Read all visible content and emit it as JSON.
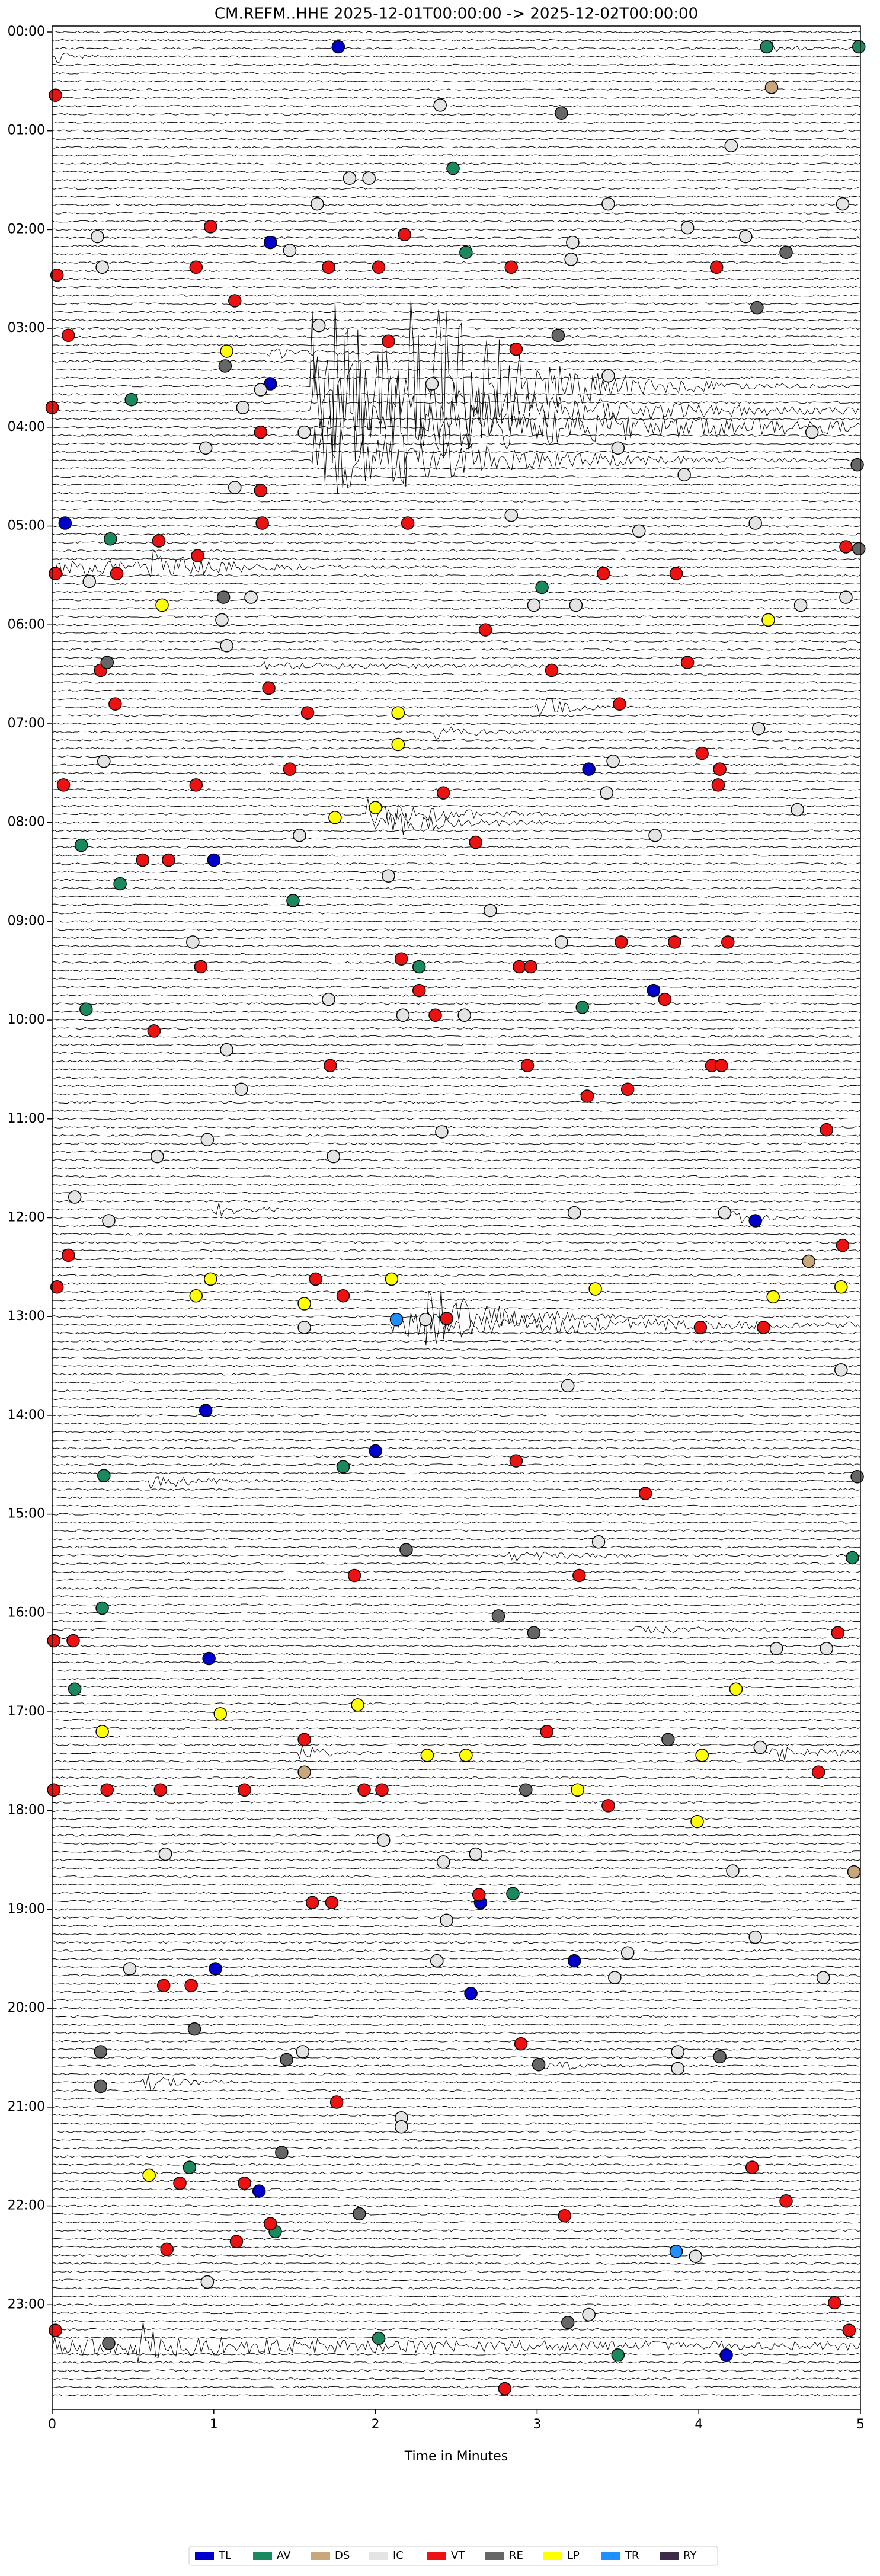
{
  "chart_data": {
    "type": "helicorder",
    "title": "CM.REFM..HHE  2025-12-01T00:00:00 -> 2025-12-02T00:00:00",
    "xlabel": "Time in Minutes",
    "xlim": [
      0,
      5
    ],
    "xticks": [
      0,
      1,
      2,
      3,
      4,
      5
    ],
    "ylim": [
      -0.06,
      24.06
    ],
    "y_inverted": true,
    "yticks": [
      {
        "value": 0,
        "label": "00:00"
      },
      {
        "value": 1,
        "label": "01:00"
      },
      {
        "value": 2,
        "label": "02:00"
      },
      {
        "value": 3,
        "label": "03:00"
      },
      {
        "value": 4,
        "label": "04:00"
      },
      {
        "value": 5,
        "label": "05:00"
      },
      {
        "value": 6,
        "label": "06:00"
      },
      {
        "value": 7,
        "label": "07:00"
      },
      {
        "value": 8,
        "label": "08:00"
      },
      {
        "value": 9,
        "label": "09:00"
      },
      {
        "value": 10,
        "label": "10:00"
      },
      {
        "value": 11,
        "label": "11:00"
      },
      {
        "value": 12,
        "label": "12:00"
      },
      {
        "value": 13,
        "label": "13:00"
      },
      {
        "value": 14,
        "label": "14:00"
      },
      {
        "value": 15,
        "label": "15:00"
      },
      {
        "value": 16,
        "label": "16:00"
      },
      {
        "value": 17,
        "label": "17:00"
      },
      {
        "value": 18,
        "label": "18:00"
      },
      {
        "value": 19,
        "label": "19:00"
      },
      {
        "value": 20,
        "label": "20:00"
      },
      {
        "value": 21,
        "label": "21:00"
      },
      {
        "value": 22,
        "label": "22:00"
      },
      {
        "value": 23,
        "label": "23:00"
      }
    ],
    "legend": "bottom",
    "series": [
      {
        "name": "TL",
        "color": "#0000cc",
        "x": [
          1.77,
          1.35,
          1.35,
          0.08,
          3.32,
          1.0,
          3.72,
          4.35,
          0.95,
          2.0,
          0.97,
          2.65,
          1.01,
          3.23,
          2.59,
          1.28,
          4.17
        ],
        "values": [
          0.15,
          2.13,
          3.56,
          4.97,
          7.46,
          8.38,
          9.7,
          12.03,
          13.95,
          14.36,
          16.46,
          18.93,
          19.6,
          19.52,
          19.85,
          21.85,
          23.51
        ]
      },
      {
        "name": "AV",
        "color": "#1a8a5e",
        "x": [
          4.42,
          4.99,
          2.48,
          2.56,
          0.49,
          0.36,
          3.03,
          0.18,
          0.42,
          1.49,
          2.27,
          0.21,
          3.28,
          1.8,
          0.32,
          4.95,
          0.31,
          0.14,
          1.38,
          2.02,
          2.85,
          3.5,
          0.85
        ],
        "values": [
          0.15,
          0.15,
          1.38,
          2.23,
          3.72,
          5.13,
          5.62,
          8.23,
          8.62,
          8.79,
          9.46,
          9.89,
          9.87,
          14.52,
          14.61,
          15.44,
          15.95,
          16.77,
          22.26,
          23.34,
          18.84,
          23.51,
          21.61
        ]
      },
      {
        "name": "DS",
        "color": "#c8a77a",
        "x": [
          4.45,
          4.68,
          4.96,
          1.56
        ],
        "values": [
          0.56,
          12.44,
          18.62,
          17.61
        ]
      },
      {
        "name": "IC",
        "color": "#e4e4e4",
        "x": [
          2.4,
          4.2,
          1.84,
          1.96,
          1.64,
          3.44,
          4.89,
          0.28,
          1.47,
          3.93,
          3.22,
          3.21,
          0.31,
          4.29,
          1.65,
          3.44,
          1.29,
          2.35,
          1.18,
          0.95,
          3.5,
          4.7,
          1.56,
          1.13,
          3.91,
          4.35,
          3.63,
          2.84,
          0.23,
          1.23,
          1.05,
          2.98,
          3.24,
          4.63,
          4.91,
          1.08,
          0.32,
          3.47,
          4.37,
          3.43,
          4.61,
          3.73,
          1.53,
          2.08,
          2.71,
          0.87,
          3.15,
          1.71,
          2.17,
          2.55,
          1.08,
          1.17,
          2.41,
          0.96,
          1.74,
          0.65,
          0.14,
          0.35,
          3.23,
          4.16,
          1.56,
          2.31,
          3.19,
          4.88,
          3.38,
          4.48,
          4.79,
          4.38,
          2.05,
          0.7,
          2.62,
          2.42,
          4.21,
          2.44,
          4.35,
          3.56,
          3.48,
          4.77,
          0.48,
          2.38,
          1.55,
          3.87,
          3.87,
          2.16,
          0.96,
          3.98,
          3.32,
          2.16
        ],
        "values": [
          0.74,
          1.15,
          1.48,
          1.48,
          1.74,
          1.74,
          1.74,
          2.07,
          2.21,
          1.98,
          2.13,
          2.3,
          2.38,
          2.07,
          2.97,
          3.48,
          3.62,
          3.56,
          3.8,
          4.21,
          4.21,
          4.05,
          4.05,
          4.61,
          4.48,
          4.97,
          5.05,
          4.89,
          5.56,
          5.72,
          5.95,
          5.8,
          5.8,
          5.8,
          5.72,
          6.21,
          7.38,
          7.38,
          7.05,
          7.7,
          7.87,
          8.13,
          8.13,
          8.54,
          8.89,
          9.21,
          9.21,
          9.79,
          9.95,
          9.95,
          10.3,
          10.7,
          11.13,
          11.21,
          11.38,
          11.38,
          11.79,
          12.03,
          11.95,
          11.95,
          13.11,
          13.03,
          13.7,
          13.54,
          15.28,
          16.36,
          16.36,
          17.36,
          18.3,
          18.44,
          18.44,
          18.52,
          18.61,
          19.11,
          19.28,
          19.44,
          19.69,
          19.69,
          19.6,
          19.52,
          20.44,
          20.44,
          20.61,
          21.11,
          22.77,
          22.51,
          23.1,
          21.2
        ]
      },
      {
        "name": "VT",
        "color": "#ee1111",
        "x": [
          0.02,
          0.98,
          2.18,
          0.03,
          0.89,
          1.71,
          2.02,
          2.84,
          4.11,
          1.13,
          0.1,
          2.08,
          2.87,
          0.0,
          1.29,
          1.29,
          1.3,
          2.2,
          0.66,
          0.02,
          0.4,
          0.9,
          3.41,
          3.86,
          4.91,
          2.68,
          0.3,
          3.93,
          1.34,
          0.39,
          1.58,
          3.09,
          3.51,
          4.02,
          1.47,
          0.89,
          0.07,
          4.13,
          4.12,
          2.42,
          0.56,
          0.72,
          2.62,
          0.92,
          2.16,
          2.89,
          2.96,
          3.52,
          3.85,
          4.18,
          2.27,
          3.79,
          0.63,
          2.37,
          1.72,
          2.94,
          4.08,
          4.14,
          3.31,
          3.56,
          4.79,
          0.1,
          4.89,
          0.03,
          1.63,
          1.8,
          2.44,
          4.01,
          4.4,
          2.87,
          3.67,
          1.87,
          3.26,
          0.01,
          0.13,
          4.86,
          1.56,
          3.06,
          0.01,
          0.34,
          0.67,
          1.19,
          1.93,
          2.04,
          3.44,
          4.74,
          1.61,
          1.73,
          2.64,
          0.69,
          0.86,
          1.76,
          2.9,
          4.33,
          0.79,
          1.19,
          4.54,
          1.35,
          3.17,
          1.14,
          0.71,
          4.84,
          0.02,
          2.8,
          4.93
        ],
        "values": [
          0.64,
          1.97,
          2.05,
          2.46,
          2.38,
          2.38,
          2.38,
          2.38,
          2.38,
          2.72,
          3.07,
          3.13,
          3.21,
          3.8,
          4.05,
          4.64,
          4.97,
          4.97,
          5.15,
          5.48,
          5.48,
          5.3,
          5.48,
          5.48,
          5.21,
          6.05,
          6.46,
          6.38,
          6.64,
          6.8,
          6.89,
          6.46,
          6.8,
          7.3,
          7.46,
          7.62,
          7.62,
          7.46,
          7.62,
          7.7,
          8.38,
          8.38,
          8.2,
          9.46,
          9.38,
          9.46,
          9.46,
          9.21,
          9.21,
          9.21,
          9.7,
          9.79,
          10.11,
          9.95,
          10.46,
          10.46,
          10.46,
          10.46,
          10.77,
          10.7,
          11.11,
          12.38,
          12.28,
          12.7,
          12.62,
          12.79,
          13.02,
          13.11,
          13.11,
          14.46,
          14.79,
          15.62,
          15.62,
          16.28,
          16.28,
          16.2,
          17.28,
          17.2,
          17.79,
          17.79,
          17.79,
          17.79,
          17.79,
          17.79,
          17.95,
          17.61,
          18.93,
          18.93,
          18.85,
          19.77,
          19.77,
          20.95,
          20.36,
          21.61,
          21.77,
          21.77,
          21.95,
          22.18,
          22.1,
          22.36,
          22.44,
          22.98,
          23.26,
          23.85,
          23.26
        ]
      },
      {
        "name": "RE",
        "color": "#666666",
        "x": [
          3.15,
          4.54,
          4.36,
          3.13,
          1.07,
          4.98,
          1.06,
          0.34,
          2.76,
          2.98,
          3.81,
          2.93,
          0.88,
          0.3,
          1.45,
          3.01,
          4.13,
          0.3,
          1.42,
          1.9,
          3.19,
          0.35,
          4.98,
          2.19,
          4.99
        ],
        "values": [
          0.82,
          2.23,
          2.79,
          3.07,
          3.38,
          4.38,
          5.72,
          6.38,
          16.03,
          16.2,
          17.28,
          17.79,
          20.21,
          20.44,
          20.52,
          20.57,
          20.49,
          20.79,
          21.46,
          22.08,
          23.18,
          23.39,
          14.62,
          15.36,
          5.23
        ]
      },
      {
        "name": "LP",
        "color": "#ffff00",
        "x": [
          1.08,
          0.68,
          4.43,
          2.14,
          2.14,
          1.75,
          2.0,
          0.98,
          0.89,
          1.56,
          2.1,
          3.36,
          4.46,
          4.88,
          1.89,
          1.04,
          0.31,
          2.32,
          2.56,
          4.02,
          3.25,
          3.99,
          0.6,
          4.23
        ],
        "values": [
          3.23,
          5.8,
          5.95,
          6.89,
          7.21,
          7.95,
          7.85,
          12.62,
          12.79,
          12.87,
          12.62,
          12.72,
          12.8,
          12.7,
          16.93,
          17.02,
          17.2,
          17.44,
          17.44,
          17.44,
          17.79,
          18.11,
          21.69,
          16.77
        ]
      },
      {
        "name": "TR",
        "color": "#1e90ff",
        "x": [
          2.13,
          3.86
        ],
        "values": [
          13.03,
          22.46
        ]
      },
      {
        "name": "RY",
        "color": "#3d2b4a",
        "x": [],
        "values": []
      }
    ]
  }
}
